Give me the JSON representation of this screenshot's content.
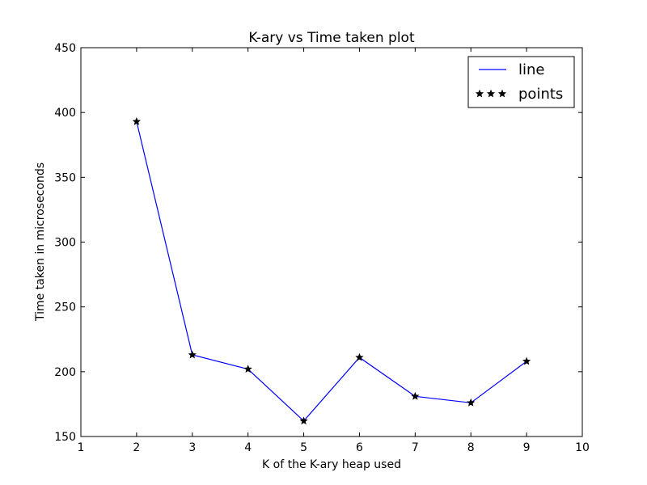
{
  "chart_data": {
    "type": "line",
    "title": "K-ary vs Time taken plot",
    "xlabel": "K of the K-ary heap used",
    "ylabel": "Time taken in microseconds",
    "xlim": [
      1,
      10
    ],
    "ylim": [
      150,
      450
    ],
    "xticks": [
      1,
      2,
      3,
      4,
      5,
      6,
      7,
      8,
      9,
      10
    ],
    "yticks": [
      150,
      200,
      250,
      300,
      350,
      400,
      450
    ],
    "grid": false,
    "legend_position": "top-right",
    "x": [
      2,
      3,
      4,
      5,
      6,
      7,
      8,
      9
    ],
    "series": [
      {
        "name": "line",
        "style": "line",
        "color": "#0000ff",
        "values": [
          393,
          213,
          202,
          162,
          211,
          181,
          176,
          208
        ]
      },
      {
        "name": "points",
        "style": "star-markers",
        "color": "#000000",
        "values": [
          393,
          213,
          202,
          162,
          211,
          181,
          176,
          208
        ]
      }
    ]
  }
}
